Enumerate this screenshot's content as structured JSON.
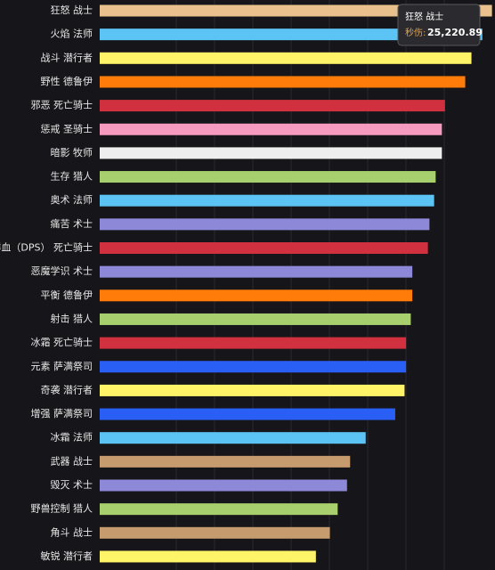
{
  "chart_data": {
    "type": "hbar",
    "categories": [
      "狂怒 战士",
      "火焰 法师",
      "战斗 潜行者",
      "野性 德鲁伊",
      "邪恶 死亡骑士",
      "惩戒 圣骑士",
      "暗影 牧师",
      "生存 猎人",
      "奥术 法师",
      "痛苦 术士",
      "鲜血（DPS） 死亡骑士",
      "恶魔学识 术士",
      "平衡 德鲁伊",
      "射击 猎人",
      "冰霜 死亡骑士",
      "元素 萨满祭司",
      "奇袭 潜行者",
      "增强 萨满祭司",
      "冰霜 法师",
      "武器 战士",
      "毁灭 术士",
      "野兽控制 猎人",
      "角斗 战士",
      "敏锐 潜行者"
    ],
    "values": [
      25220.89,
      24600,
      23900,
      23500,
      22200,
      22000,
      22000,
      21600,
      21500,
      21200,
      21100,
      20100,
      20100,
      20000,
      19700,
      19700,
      19600,
      19000,
      17100,
      16100,
      15900,
      15300,
      14800,
      13900
    ],
    "colors": [
      "#e8c18c",
      "#5cc4f5",
      "#fff468",
      "#ff7c0a",
      "#d1303f",
      "#f79ac0",
      "#eeeeee",
      "#a8cf6e",
      "#5cc4f5",
      "#8d88d8",
      "#d1303f",
      "#8d88d8",
      "#ff7c0a",
      "#a8cf6e",
      "#d1303f",
      "#2a5ff5",
      "#fff468",
      "#2a5ff5",
      "#5cc4f5",
      "#c69b6d",
      "#8d88d8",
      "#a8cf6e",
      "#c69b6d",
      "#fff468"
    ],
    "xlim": [
      0,
      25300
    ],
    "tooltip": {
      "title": "狂怒 战士",
      "label": "秒伤:",
      "value": "25,220.89"
    }
  }
}
